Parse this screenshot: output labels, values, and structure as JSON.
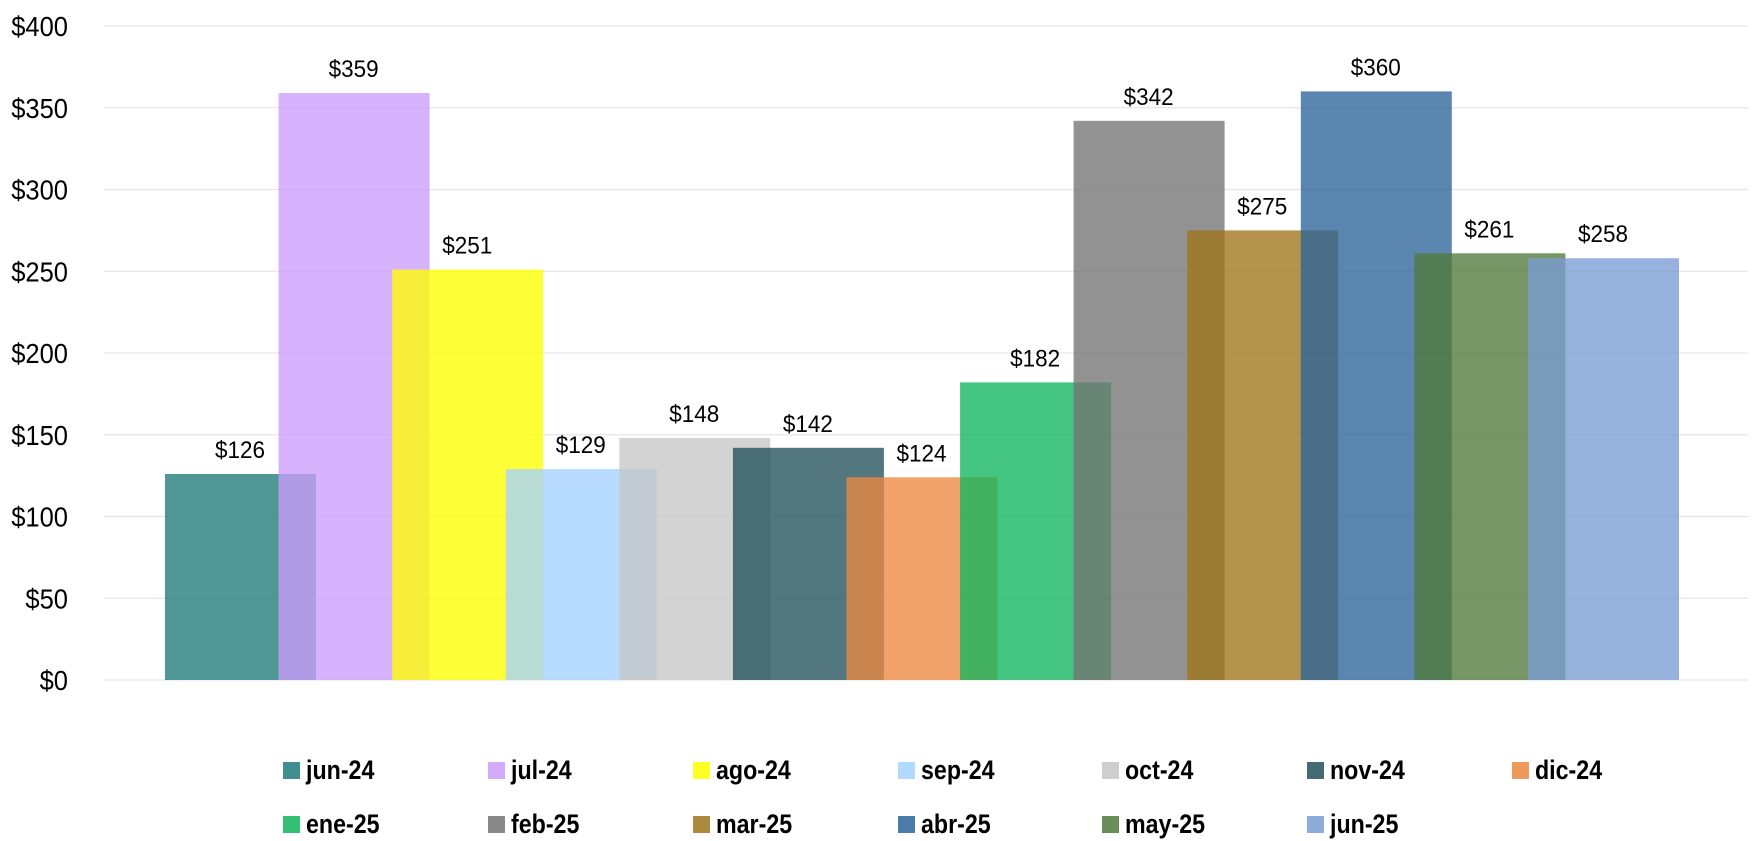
{
  "chart_data": {
    "type": "bar",
    "title": "",
    "xlabel": "",
    "ylabel": "",
    "ylim": [
      0,
      400
    ],
    "yticks": [
      0,
      50,
      100,
      150,
      200,
      250,
      300,
      350,
      400
    ],
    "ytick_labels": [
      "$0",
      "$50",
      "$100",
      "$150",
      "$200",
      "$250",
      "$300",
      "$350",
      "$400"
    ],
    "grid": "horizontal",
    "legend_position": "bottom",
    "categories": [
      "jun-24",
      "jul-24",
      "ago-24",
      "sep-24",
      "oct-24",
      "nov-24",
      "dic-24",
      "ene-25",
      "feb-25",
      "mar-25",
      "abr-25",
      "may-25",
      "jun-25"
    ],
    "series": [
      {
        "name": "jun-24",
        "value": 126,
        "label": "$126",
        "color": "#1f7b7b"
      },
      {
        "name": "jul-24",
        "value": 359,
        "label": "$359",
        "color": "#cc9cfc"
      },
      {
        "name": "ago-24",
        "value": 251,
        "label": "$251",
        "color": "#ffff00"
      },
      {
        "name": "sep-24",
        "value": 129,
        "label": "$129",
        "color": "#a4d2ff"
      },
      {
        "name": "oct-24",
        "value": 148,
        "label": "$148",
        "color": "#c6c6c6"
      },
      {
        "name": "nov-24",
        "value": 142,
        "label": "$142",
        "color": "#22515a"
      },
      {
        "name": "dic-24",
        "value": 124,
        "label": "$124",
        "color": "#ec8840"
      },
      {
        "name": "ene-25",
        "value": 182,
        "label": "$182",
        "color": "#0fb55d"
      },
      {
        "name": "feb-25",
        "value": 342,
        "label": "$342",
        "color": "#737373"
      },
      {
        "name": "mar-25",
        "value": 275,
        "label": "$275",
        "color": "#9f761b"
      },
      {
        "name": "abr-25",
        "value": 360,
        "label": "$360",
        "color": "#2c6498"
      },
      {
        "name": "may-25",
        "value": 261,
        "label": "$261",
        "color": "#4f7a3a"
      },
      {
        "name": "jun-25",
        "value": 258,
        "label": "$258",
        "color": "#7a9cd4"
      }
    ]
  }
}
